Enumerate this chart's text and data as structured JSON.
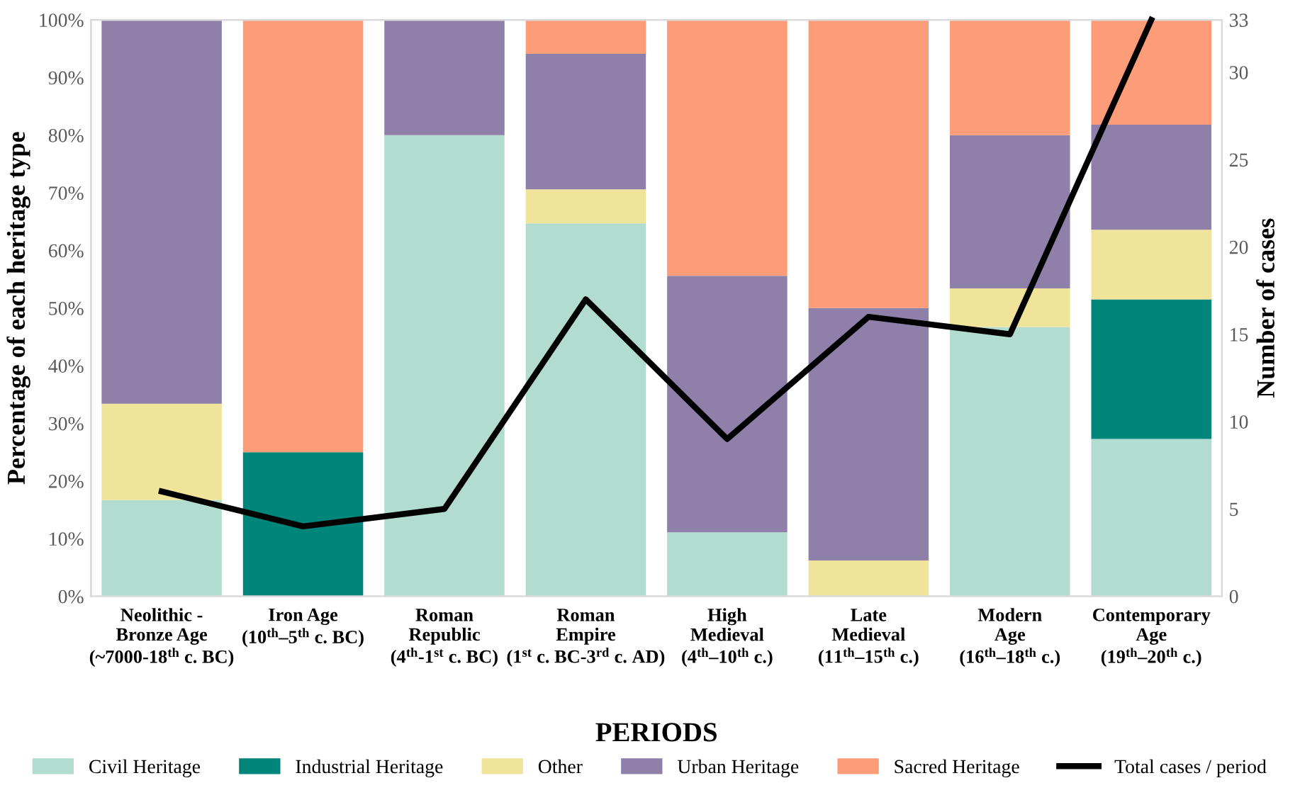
{
  "chart_data": {
    "type": "bar",
    "stacked": true,
    "xlabel": "PERIODS",
    "ylabel": "Percentage of each heritage type",
    "y2label": "Number of cases",
    "categories": [
      "Neolithic -\nBronze Age\n(~7000-18$^{th}$ c. BC)",
      "Iron Age\n(10$^{th}$–5$^{th}$ c. BC)",
      "Roman\nRepublic\n(4$^{th}$-1$^{st}$ c. BC)",
      "Roman\nEmpire\n(1$^{st}$ c. BC-3$^{rd}$ c. AD)",
      "High\nMedieval\n(4$^{th}$–10$^{th}$ c.)",
      "Late\nMedieval\n(11$^{th}$–15$^{th}$ c.)",
      "Modern\nAge\n(16$^{th}$–18$^{th}$ c.)",
      "Contemporary\nAge\n(19$^{th}$–20$^{th}$ c.)"
    ],
    "series": [
      {
        "name": "Civil Heritage",
        "color": "#b3dcd0",
        "values": [
          16.7,
          0,
          80,
          64.7,
          11.1,
          0,
          46.7,
          27.3
        ]
      },
      {
        "name": "Industrial Heritage",
        "color": "#00857a",
        "values": [
          0,
          25,
          0,
          0,
          0,
          0,
          0,
          24.2
        ]
      },
      {
        "name": "Other",
        "color": "#efe49a",
        "values": [
          16.7,
          0,
          0,
          5.9,
          0,
          6.2,
          6.7,
          12.1
        ]
      },
      {
        "name": "Urban Heritage",
        "color": "#8e80a8",
        "values": [
          66.6,
          0,
          20,
          23.5,
          44.5,
          43.8,
          26.6,
          18.2
        ]
      },
      {
        "name": "Sacred Heritage",
        "color": "#fc9c79",
        "values": [
          0,
          75,
          0,
          5.9,
          44.4,
          50,
          20,
          18.2
        ]
      },
      {
        "name": "Total cases / period",
        "type": "line",
        "axis": "y2",
        "color": "#000000",
        "values": [
          6,
          4,
          5,
          17,
          9,
          16,
          15,
          33
        ]
      }
    ],
    "ylim": [
      0,
      100
    ],
    "yticks": [
      {
        "value": 0,
        "label": "0%"
      },
      {
        "value": 10,
        "label": "10%"
      },
      {
        "value": 20,
        "label": "20%"
      },
      {
        "value": 30,
        "label": "30%"
      },
      {
        "value": 40,
        "label": "40%"
      },
      {
        "value": 50,
        "label": "50%"
      },
      {
        "value": 60,
        "label": "60%"
      },
      {
        "value": 70,
        "label": "70%"
      },
      {
        "value": 80,
        "label": "80%"
      },
      {
        "value": 90,
        "label": "90%"
      },
      {
        "value": 100,
        "label": "100%"
      }
    ],
    "y2lim": [
      0,
      33
    ],
    "y2ticks": [
      0,
      5,
      10,
      15,
      20,
      25,
      30,
      33
    ],
    "legend": "bottom"
  }
}
